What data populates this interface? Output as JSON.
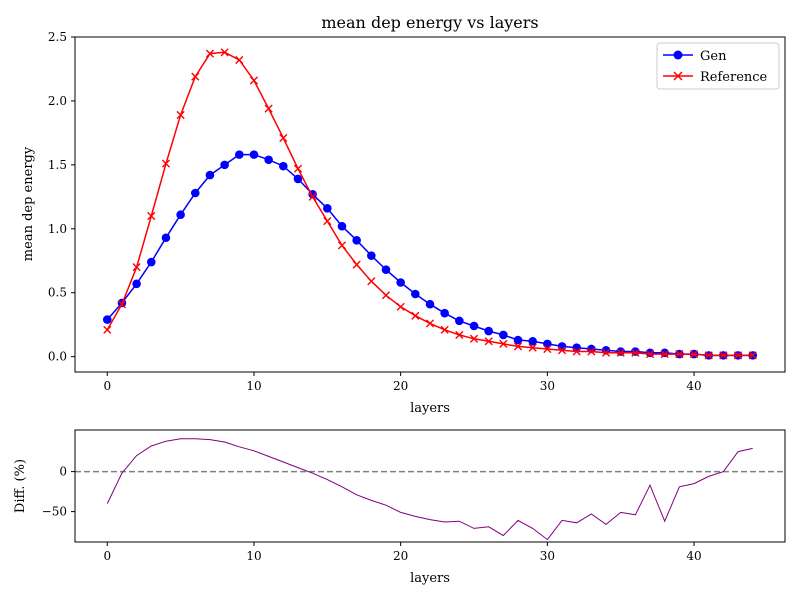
{
  "chart_data": [
    {
      "type": "line",
      "title": "mean dep energy vs layers",
      "xlabel": "layers",
      "ylabel": "mean dep energy",
      "xlim": [
        -2.2,
        46.2
      ],
      "ylim": [
        -0.12,
        2.5
      ],
      "xticks": [
        0,
        10,
        20,
        30,
        40
      ],
      "yticks": [
        0.0,
        0.5,
        1.0,
        1.5,
        2.0,
        2.5
      ],
      "ytick_labels": [
        "0.0",
        "0.5",
        "1.0",
        "1.5",
        "2.0",
        "2.5"
      ],
      "grid": false,
      "legend_position": "top-right",
      "x": [
        0,
        1,
        2,
        3,
        4,
        5,
        6,
        7,
        8,
        9,
        10,
        11,
        12,
        13,
        14,
        15,
        16,
        17,
        18,
        19,
        20,
        21,
        22,
        23,
        24,
        25,
        26,
        27,
        28,
        29,
        30,
        31,
        32,
        33,
        34,
        35,
        36,
        37,
        38,
        39,
        40,
        41,
        42,
        43,
        44
      ],
      "series": [
        {
          "name": "Gen",
          "color": "#0000ff",
          "marker": "circle",
          "values": [
            0.29,
            0.42,
            0.57,
            0.74,
            0.93,
            1.11,
            1.28,
            1.42,
            1.5,
            1.58,
            1.58,
            1.54,
            1.49,
            1.39,
            1.27,
            1.16,
            1.02,
            0.91,
            0.79,
            0.68,
            0.58,
            0.49,
            0.41,
            0.34,
            0.28,
            0.24,
            0.2,
            0.17,
            0.13,
            0.12,
            0.1,
            0.08,
            0.07,
            0.06,
            0.05,
            0.04,
            0.04,
            0.03,
            0.03,
            0.02,
            0.02,
            0.01,
            0.01,
            0.01,
            0.01
          ]
        },
        {
          "name": "Reference",
          "color": "#ff0000",
          "marker": "x",
          "values": [
            0.21,
            0.41,
            0.7,
            1.1,
            1.51,
            1.89,
            2.19,
            2.37,
            2.38,
            2.32,
            2.16,
            1.94,
            1.71,
            1.47,
            1.25,
            1.06,
            0.87,
            0.72,
            0.59,
            0.48,
            0.39,
            0.32,
            0.26,
            0.21,
            0.17,
            0.14,
            0.12,
            0.1,
            0.08,
            0.07,
            0.06,
            0.05,
            0.04,
            0.04,
            0.03,
            0.03,
            0.03,
            0.02,
            0.02,
            0.02,
            0.02,
            0.01,
            0.01,
            0.01,
            0.01
          ]
        }
      ]
    },
    {
      "type": "line",
      "xlabel": "layers",
      "ylabel": "Diff. (%)",
      "xlim": [
        -2.2,
        46.2
      ],
      "ylim": [
        -88,
        52
      ],
      "xticks": [
        0,
        10,
        20,
        30,
        40
      ],
      "yticks": [
        -50,
        0
      ],
      "ytick_labels": [
        "−50",
        "0"
      ],
      "grid": false,
      "reference_line": {
        "y": 0,
        "style": "dashed",
        "color": "#808080"
      },
      "x": [
        0,
        1,
        2,
        3,
        4,
        5,
        6,
        7,
        8,
        9,
        10,
        11,
        12,
        13,
        14,
        15,
        16,
        17,
        18,
        19,
        20,
        21,
        22,
        23,
        24,
        25,
        26,
        27,
        28,
        29,
        30,
        31,
        32,
        33,
        34,
        35,
        36,
        37,
        38,
        39,
        40,
        41,
        42,
        43,
        44
      ],
      "series": [
        {
          "color": "#800080",
          "values": [
            -40,
            -2,
            20,
            32,
            38,
            41,
            41,
            40,
            37,
            31,
            26,
            19,
            12,
            5,
            -2,
            -10,
            -19,
            -29,
            -36,
            -42,
            -51,
            -56,
            -60,
            -63,
            -62,
            -71,
            -69,
            -80,
            -61,
            -71,
            -85,
            -61,
            -64,
            -53,
            -66,
            -51,
            -54,
            -17,
            -62,
            -19,
            -15,
            -6,
            0,
            25,
            29
          ]
        }
      ]
    }
  ]
}
